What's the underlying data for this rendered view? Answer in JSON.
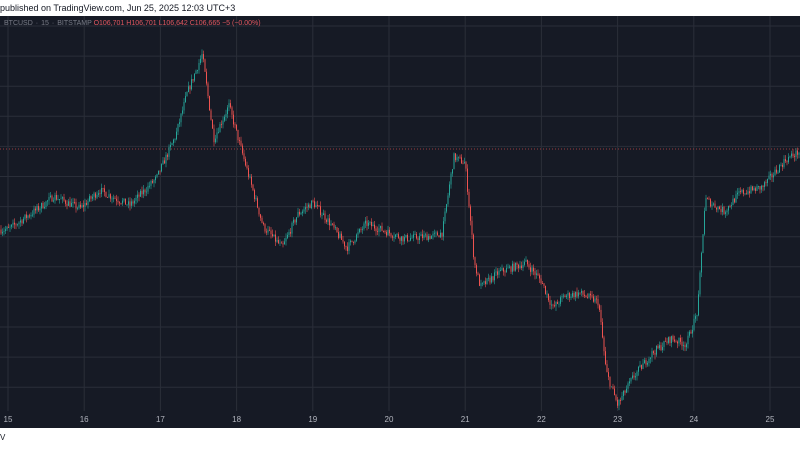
{
  "header": {
    "published_text": "published on TradingView.com, Jun 25, 2025 12:03 UTC+3"
  },
  "legend": {
    "symbol": "BTCUSD",
    "interval": "15",
    "exchange": "BITSTAMP",
    "open": "O106,701",
    "high": "H106,701",
    "low": "L106,642",
    "close": "C106,665",
    "change": "−5 (−0.00%)"
  },
  "footer": {
    "logo_text": "V"
  },
  "colors": {
    "background": "#161a25",
    "grid": "#2a2e39",
    "up": "#26a69a",
    "down": "#ef5350",
    "axis_text": "#b2b5be",
    "last_price_line": "#ef5350"
  },
  "chart_data": {
    "type": "candlestick",
    "x_axis_ticks": [
      "15",
      "16",
      "17",
      "18",
      "19",
      "20",
      "21",
      "22",
      "23",
      "24",
      "25"
    ],
    "last_price_marker": 106665,
    "ylim": [
      98000,
      110600
    ],
    "price_path": [
      [
        0,
        104000
      ],
      [
        0.4,
        104700
      ],
      [
        0.6,
        105100
      ],
      [
        0.95,
        104700
      ],
      [
        1.2,
        105300
      ],
      [
        1.6,
        104800
      ],
      [
        1.95,
        105700
      ],
      [
        2.2,
        107100
      ],
      [
        2.35,
        108500
      ],
      [
        2.55,
        109800
      ],
      [
        2.7,
        107000
      ],
      [
        2.9,
        108100
      ],
      [
        3.1,
        106300
      ],
      [
        3.35,
        104100
      ],
      [
        3.6,
        103400
      ],
      [
        3.8,
        104500
      ],
      [
        4.0,
        104900
      ],
      [
        4.2,
        104300
      ],
      [
        4.45,
        103400
      ],
      [
        4.7,
        104200
      ],
      [
        5.2,
        103700
      ],
      [
        5.6,
        103800
      ],
      [
        5.7,
        103900
      ],
      [
        5.85,
        106400
      ],
      [
        6.0,
        106200
      ],
      [
        6.12,
        102900
      ],
      [
        6.2,
        102100
      ],
      [
        6.45,
        102600
      ],
      [
        6.8,
        102900
      ],
      [
        7.0,
        102300
      ],
      [
        7.15,
        101400
      ],
      [
        7.3,
        101800
      ],
      [
        7.5,
        101900
      ],
      [
        7.75,
        101600
      ],
      [
        7.85,
        99300
      ],
      [
        8.0,
        98200
      ],
      [
        8.2,
        99100
      ],
      [
        8.45,
        99900
      ],
      [
        8.7,
        100400
      ],
      [
        8.9,
        100200
      ],
      [
        9.05,
        101300
      ],
      [
        9.15,
        105000
      ],
      [
        9.4,
        104600
      ],
      [
        9.6,
        105200
      ],
      [
        9.9,
        105400
      ],
      [
        10.2,
        106300
      ],
      [
        10.4,
        106600
      ],
      [
        10.7,
        106800
      ],
      [
        10.95,
        106400
      ],
      [
        11.1,
        106700
      ]
    ]
  }
}
